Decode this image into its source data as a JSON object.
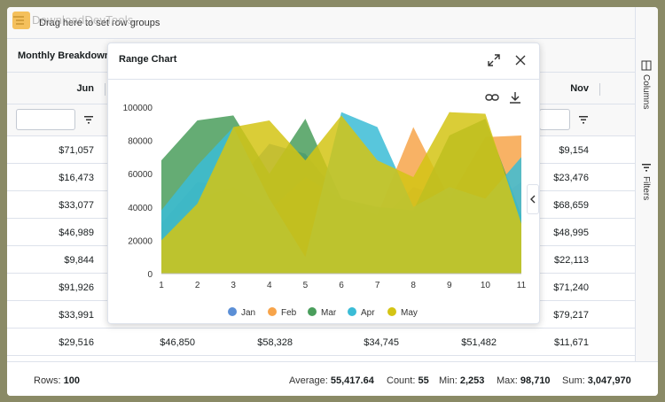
{
  "watermark": "DownloadDevTools",
  "group_bar": {
    "text": "Drag here to set row groups"
  },
  "header_group": {
    "label": "Monthly Breakdown"
  },
  "columns": {
    "jun": "Jun",
    "nov": "Nov"
  },
  "rows": [
    {
      "jun": "$71,057",
      "nov": "$9,154"
    },
    {
      "jun": "$16,473",
      "nov": "$23,476"
    },
    {
      "jun": "$33,077",
      "nov": "$68,659"
    },
    {
      "jun": "$46,989",
      "nov": "$48,995"
    },
    {
      "jun": "$9,844",
      "nov": "$22,113"
    },
    {
      "jun": "$91,926",
      "nov": "$71,240"
    },
    {
      "jun": "$33,991",
      "nov": "$79,217"
    },
    {
      "jun": "$29,516",
      "c2": "$46,850",
      "c3": "$58,328",
      "c4": "$34,745",
      "c5": "$51,482",
      "nov": "$11,671"
    }
  ],
  "side_panel": {
    "columns": "Columns",
    "filters": "Filters"
  },
  "status": {
    "rows_label": "Rows:",
    "rows_value": "100",
    "avg_label": "Average:",
    "avg_value": "55,417.64",
    "count_label": "Count:",
    "count_value": "55",
    "min_label": "Min:",
    "min_value": "2,253",
    "max_label": "Max:",
    "max_value": "98,710",
    "sum_label": "Sum:",
    "sum_value": "3,047,970"
  },
  "chart_window": {
    "title": "Range Chart"
  },
  "chart_data": {
    "type": "area",
    "title": "Range Chart",
    "x": [
      1,
      2,
      3,
      4,
      5,
      6,
      7,
      8,
      9,
      10,
      11
    ],
    "ylim": [
      0,
      100000
    ],
    "yticks": [
      0,
      20000,
      40000,
      60000,
      80000,
      100000
    ],
    "series": [
      {
        "name": "Jan",
        "color": "#5b8fd6",
        "values": [
          30000,
          55000,
          52000,
          78000,
          72000,
          45000,
          30000,
          52000,
          45000,
          40000,
          55000
        ]
      },
      {
        "name": "Feb",
        "color": "#f7a44a",
        "values": [
          25000,
          45000,
          52000,
          38000,
          58000,
          45000,
          35000,
          88000,
          45000,
          82000,
          83000
        ]
      },
      {
        "name": "Mar",
        "color": "#4a9e5c",
        "values": [
          68000,
          92000,
          95000,
          60000,
          93000,
          45000,
          40000,
          38000,
          83000,
          93000,
          35000
        ]
      },
      {
        "name": "Apr",
        "color": "#3bbcd6",
        "values": [
          38000,
          65000,
          88000,
          45000,
          10000,
          97000,
          88000,
          40000,
          52000,
          45000,
          70000
        ]
      },
      {
        "name": "May",
        "color": "#d4c414",
        "values": [
          20000,
          42000,
          88000,
          92000,
          68000,
          95000,
          68000,
          58000,
          97000,
          96000,
          30000
        ]
      }
    ]
  }
}
